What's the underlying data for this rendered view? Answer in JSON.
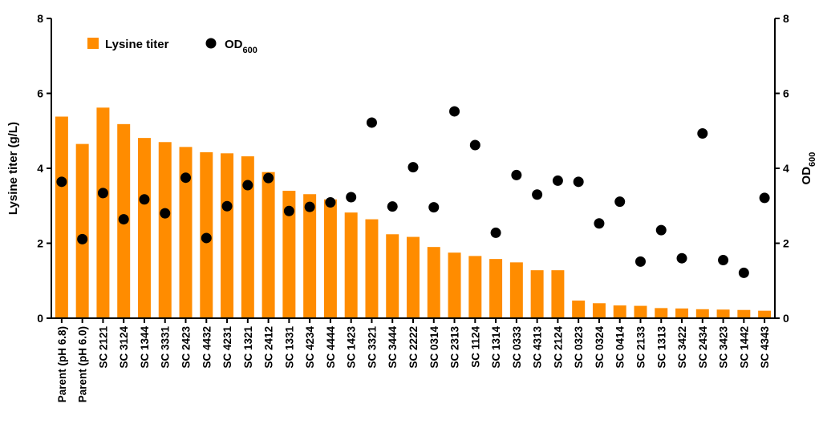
{
  "chart_data": {
    "type": "bar",
    "categories": [
      "Parent (pH 6.8)",
      "Parent (pH 6.0)",
      "SC 2121",
      "SC 3124",
      "SC 1344",
      "SC 3331",
      "SC 2423",
      "SC 4432",
      "SC 4231",
      "SC 1321",
      "SC 2412",
      "SC 1331",
      "SC 4234",
      "SC 4444",
      "SC 1423",
      "SC 3321",
      "SC 3444",
      "SC 2222",
      "SC 0314",
      "SC 2313",
      "SC 1124",
      "SC 1314",
      "SC 0333",
      "SC 4313",
      "SC 2124",
      "SC 0323",
      "SC 0324",
      "SC 0414",
      "SC 2133",
      "SC 1313",
      "SC 3422",
      "SC 2434",
      "SC 3423",
      "SC 1442",
      "SC 4343"
    ],
    "series": [
      {
        "name": "Lysine titer",
        "type": "bar",
        "axis": "left",
        "color": "#FF8C00",
        "values": [
          5.38,
          4.65,
          5.62,
          5.18,
          4.81,
          4.7,
          4.57,
          4.43,
          4.4,
          4.32,
          3.9,
          3.4,
          3.31,
          3.17,
          2.82,
          2.64,
          2.24,
          2.17,
          1.9,
          1.75,
          1.66,
          1.58,
          1.49,
          1.28,
          1.28,
          0.47,
          0.4,
          0.34,
          0.33,
          0.27,
          0.26,
          0.24,
          0.23,
          0.22,
          0.2
        ]
      },
      {
        "name": "OD",
        "name_subscript": "600",
        "type": "scatter",
        "axis": "right",
        "color": "#000000",
        "values": [
          3.64,
          2.11,
          3.34,
          2.64,
          3.17,
          2.8,
          3.75,
          2.14,
          2.99,
          3.55,
          3.74,
          2.86,
          2.97,
          3.09,
          3.23,
          5.22,
          2.98,
          4.03,
          2.96,
          5.52,
          4.62,
          2.28,
          3.82,
          3.3,
          3.67,
          3.64,
          2.53,
          3.11,
          1.51,
          2.35,
          1.6,
          4.93,
          1.55,
          1.21,
          3.21
        ]
      }
    ],
    "ylabel_left": "Lysine titer (g/L)",
    "ylabel_right": "OD",
    "ylabel_right_subscript": "600",
    "ylim": [
      0,
      8
    ],
    "yticks": [
      "0",
      "2",
      "4",
      "6",
      "8"
    ],
    "legend": {
      "placement": "top-left",
      "items": [
        {
          "label": "Lysine titer",
          "marker": "square"
        },
        {
          "label": "OD",
          "subscript": "600",
          "marker": "circle"
        }
      ]
    },
    "grid": false
  }
}
